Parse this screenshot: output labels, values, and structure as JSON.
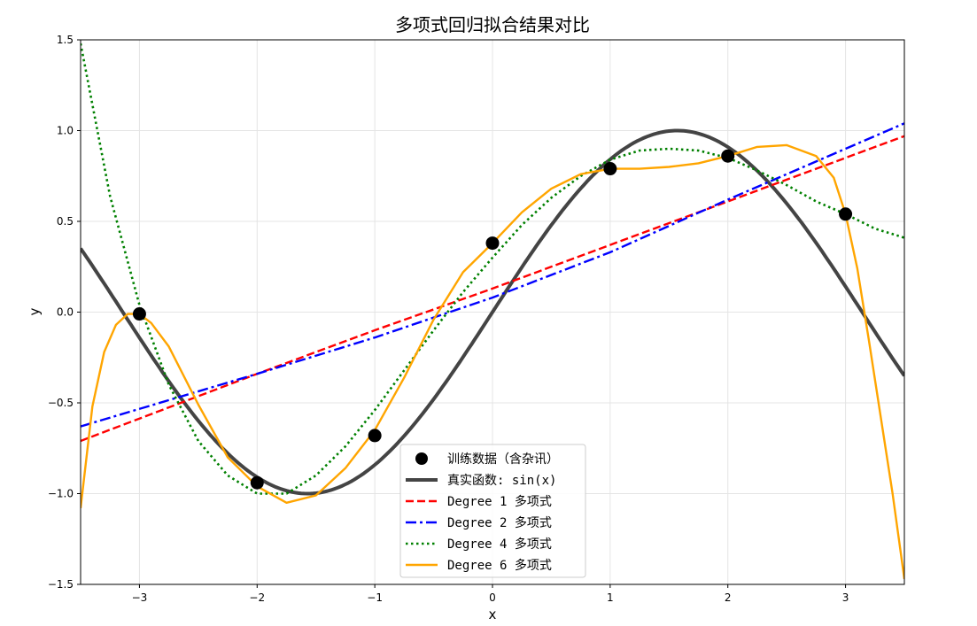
{
  "chart_data": {
    "type": "line",
    "title": "多项式回归拟合结果对比",
    "xlabel": "x",
    "ylabel": "y",
    "xlim": [
      -3.5,
      3.5
    ],
    "ylim": [
      -1.5,
      1.5
    ],
    "x_ticks": [
      -3,
      -2,
      -1,
      0,
      1,
      2,
      3
    ],
    "x_tick_labels": [
      "−3",
      "−2",
      "−1",
      "0",
      "1",
      "2",
      "3"
    ],
    "y_ticks": [
      -1.5,
      -1.0,
      -0.5,
      0.0,
      0.5,
      1.0,
      1.5
    ],
    "y_tick_labels": [
      "−1.5",
      "−1.0",
      "−0.5",
      "0.0",
      "0.5",
      "1.0",
      "1.5"
    ],
    "grid": true,
    "legend_position": "bottom-center",
    "training_points": {
      "name": "训练数据（含杂讯）",
      "color": "#000000",
      "x": [
        -3,
        -2,
        -1,
        0,
        1,
        2,
        3
      ],
      "y": [
        -0.01,
        -0.94,
        -0.68,
        0.38,
        0.79,
        0.86,
        0.54
      ]
    },
    "series": [
      {
        "name": "真实函数: sin(x)",
        "color": "#444444",
        "style": "solid",
        "function": "sin"
      },
      {
        "name": "Degree 1 多项式",
        "color": "#ff0000",
        "style": "dashed",
        "x": [
          -3.5,
          -2,
          -1,
          0,
          1,
          2,
          3.5
        ],
        "y": [
          -0.71,
          -0.34,
          -0.1,
          0.13,
          0.37,
          0.61,
          0.97
        ]
      },
      {
        "name": "Degree 2 多项式",
        "color": "#0000ff",
        "style": "dashdot",
        "x": [
          -3.5,
          -2,
          -1,
          0,
          1,
          2,
          3.5
        ],
        "y": [
          -0.63,
          -0.34,
          -0.14,
          0.08,
          0.33,
          0.62,
          1.04
        ]
      },
      {
        "name": "Degree 4 多项式",
        "color": "#008000",
        "style": "dotted",
        "x": [
          -3.5,
          -3.25,
          -3,
          -2.75,
          -2.5,
          -2.25,
          -2,
          -1.75,
          -1.5,
          -1.25,
          -1,
          -0.75,
          -0.5,
          -0.25,
          0,
          0.25,
          0.5,
          0.75,
          1,
          1.25,
          1.5,
          1.75,
          2,
          2.25,
          2.5,
          2.75,
          3,
          3.25,
          3.5
        ],
        "y": [
          1.48,
          0.64,
          0.04,
          -0.4,
          -0.71,
          -0.9,
          -1.0,
          -1.0,
          -0.9,
          -0.74,
          -0.54,
          -0.32,
          -0.1,
          0.11,
          0.3,
          0.48,
          0.63,
          0.75,
          0.84,
          0.89,
          0.9,
          0.89,
          0.85,
          0.78,
          0.7,
          0.61,
          0.54,
          0.46,
          0.41
        ]
      },
      {
        "name": "Degree 6 多项式",
        "color": "#ffa500",
        "style": "solid",
        "x": [
          -3.5,
          -3.4,
          -3.3,
          -3.2,
          -3.1,
          -3,
          -2.9,
          -2.75,
          -2.5,
          -2.25,
          -2,
          -1.75,
          -1.5,
          -1.25,
          -1,
          -0.75,
          -0.5,
          -0.25,
          0,
          0.25,
          0.5,
          0.75,
          1,
          1.25,
          1.5,
          1.75,
          2,
          2.25,
          2.5,
          2.75,
          2.9,
          3,
          3.1,
          3.2,
          3.3,
          3.4,
          3.5
        ],
        "y": [
          -1.08,
          -0.52,
          -0.22,
          -0.07,
          -0.01,
          -0.01,
          -0.06,
          -0.19,
          -0.51,
          -0.8,
          -0.96,
          -1.05,
          -1.01,
          -0.86,
          -0.65,
          -0.36,
          -0.04,
          0.22,
          0.38,
          0.55,
          0.68,
          0.76,
          0.79,
          0.79,
          0.8,
          0.82,
          0.86,
          0.91,
          0.92,
          0.86,
          0.74,
          0.54,
          0.24,
          -0.16,
          -0.58,
          -1.0,
          -1.47
        ]
      }
    ]
  }
}
